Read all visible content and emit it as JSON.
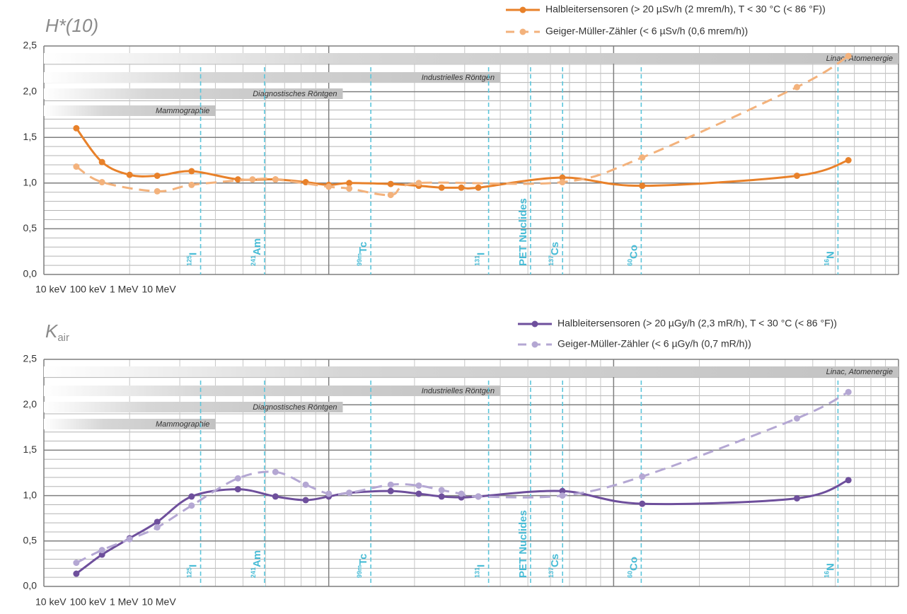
{
  "chart_data": [
    {
      "type": "line",
      "title": "H*(10)",
      "xscale": "log",
      "grid": true,
      "legend": "top-right",
      "xlim": [
        10,
        10000
      ],
      "xticks": [
        {
          "value": 10,
          "label": "10 keV"
        },
        {
          "value": 100,
          "label": "100 keV"
        },
        {
          "value": 1000,
          "label": "1 MeV"
        },
        {
          "value": 10000,
          "label": "10 MeV"
        }
      ],
      "xminorticks": [
        20,
        30,
        40,
        50,
        60,
        70,
        80,
        90,
        200,
        300,
        400,
        500,
        600,
        700,
        800,
        900,
        2000,
        3000,
        4000,
        5000,
        6000,
        7000,
        8000,
        9000
      ],
      "ylim": [
        0,
        2.5
      ],
      "yticks": [
        {
          "value": 0,
          "label": "0,0"
        },
        {
          "value": 0.5,
          "label": "0,5"
        },
        {
          "value": 1,
          "label": "1,0"
        },
        {
          "value": 1.5,
          "label": "1,5"
        },
        {
          "value": 2,
          "label": "2,0"
        },
        {
          "value": 2.5,
          "label": "2,5"
        }
      ],
      "yminorticks": [
        0.1,
        0.2,
        0.3,
        0.4,
        0.6,
        0.7,
        0.8,
        0.9,
        1.1,
        1.2,
        1.3,
        1.4,
        1.6,
        1.7,
        1.8,
        1.9,
        2.1,
        2.2,
        2.3,
        2.4
      ],
      "ranges": [
        {
          "label": "Linac, Atomenergie",
          "x_end": 10000
        },
        {
          "label": "Industrielles Röntgen",
          "x_end": 400
        },
        {
          "label": "Diagnostisches Röntgen",
          "x_end": 112
        },
        {
          "label": "Mammographie",
          "x_end": 40
        }
      ],
      "nuclides": [
        {
          "mass": "125",
          "symbol": "I",
          "x": 35.5
        },
        {
          "mass": "241",
          "symbol": "Am",
          "x": 59.5
        },
        {
          "mass": "99m",
          "symbol": "Tc",
          "x": 140.5
        },
        {
          "mass": "131",
          "symbol": "I",
          "x": 364
        },
        {
          "mass": "",
          "symbol": "PET Nuclides",
          "x": 511
        },
        {
          "mass": "137",
          "symbol": "Cs",
          "x": 662
        },
        {
          "mass": "60",
          "symbol": "Co",
          "x": 1250
        },
        {
          "mass": "16",
          "symbol": "N",
          "x": 6130
        }
      ],
      "series": [
        {
          "name": "Halbleitersensoren (> 20 µSv/h (2 mrem/h), T < 30 °C (< 86 °F))",
          "color": "#e8812a",
          "dashed": false,
          "x": [
            13,
            16,
            20,
            25,
            33,
            48,
            65,
            83,
            100,
            118,
            165,
            207,
            249,
            292,
            335,
            661,
            1260,
            4400,
            6670
          ],
          "values": [
            1.6,
            1.23,
            1.09,
            1.08,
            1.13,
            1.04,
            1.04,
            1.01,
            0.98,
            1.0,
            0.99,
            0.97,
            0.95,
            0.95,
            0.95,
            1.06,
            0.97,
            1.08,
            1.25
          ]
        },
        {
          "name": "Geiger-Müller-Zähler (< 6 µSv/h (0,6 mrem/h))",
          "color": "#f3b27c",
          "dashed": true,
          "x": [
            13,
            16,
            25,
            33,
            54,
            65,
            100,
            118,
            165,
            207,
            661,
            1260,
            4400,
            6670
          ],
          "values": [
            1.18,
            1.01,
            0.91,
            0.98,
            1.04,
            1.04,
            0.96,
            0.94,
            0.87,
            1.0,
            1.01,
            1.28,
            2.05,
            2.39
          ]
        }
      ]
    },
    {
      "type": "line",
      "title": "K",
      "title_subscript": "air",
      "xscale": "log",
      "grid": true,
      "legend": "top-right",
      "xlim": [
        10,
        10000
      ],
      "xticks": [
        {
          "value": 10,
          "label": "10 keV"
        },
        {
          "value": 100,
          "label": "100 keV"
        },
        {
          "value": 1000,
          "label": "1 MeV"
        },
        {
          "value": 10000,
          "label": "10 MeV"
        }
      ],
      "xminorticks": [
        20,
        30,
        40,
        50,
        60,
        70,
        80,
        90,
        200,
        300,
        400,
        500,
        600,
        700,
        800,
        900,
        2000,
        3000,
        4000,
        5000,
        6000,
        7000,
        8000,
        9000
      ],
      "ylim": [
        0,
        2.5
      ],
      "yticks": [
        {
          "value": 0,
          "label": "0,0"
        },
        {
          "value": 0.5,
          "label": "0,5"
        },
        {
          "value": 1,
          "label": "1,0"
        },
        {
          "value": 1.5,
          "label": "1,5"
        },
        {
          "value": 2,
          "label": "2,0"
        },
        {
          "value": 2.5,
          "label": "2,5"
        }
      ],
      "yminorticks": [
        0.1,
        0.2,
        0.3,
        0.4,
        0.6,
        0.7,
        0.8,
        0.9,
        1.1,
        1.2,
        1.3,
        1.4,
        1.6,
        1.7,
        1.8,
        1.9,
        2.1,
        2.2,
        2.3,
        2.4
      ],
      "ranges": [
        {
          "label": "Linac, Atomenergie",
          "x_end": 10000
        },
        {
          "label": "Industrielles Röntgen",
          "x_end": 400
        },
        {
          "label": "Diagnostisches Röntgen",
          "x_end": 112
        },
        {
          "label": "Mammographie",
          "x_end": 40
        }
      ],
      "nuclides": [
        {
          "mass": "125",
          "symbol": "I",
          "x": 35.5
        },
        {
          "mass": "241",
          "symbol": "Am",
          "x": 59.5
        },
        {
          "mass": "99m",
          "symbol": "Tc",
          "x": 140.5
        },
        {
          "mass": "131",
          "symbol": "I",
          "x": 364
        },
        {
          "mass": "",
          "symbol": "PET Nuclides",
          "x": 511
        },
        {
          "mass": "137",
          "symbol": "Cs",
          "x": 662
        },
        {
          "mass": "60",
          "symbol": "Co",
          "x": 1250
        },
        {
          "mass": "16",
          "symbol": "N",
          "x": 6130
        }
      ],
      "series": [
        {
          "name": "Halbleitersensoren (> 20 µGy/h (2,3 mR/h), T < 30 °C (< 86 °F))",
          "color": "#6e4f9c",
          "dashed": false,
          "x": [
            13,
            16,
            20,
            25,
            33,
            48,
            65,
            83,
            100,
            118,
            165,
            207,
            249,
            292,
            335,
            661,
            1260,
            4400,
            6670
          ],
          "values": [
            0.14,
            0.35,
            0.53,
            0.71,
            0.99,
            1.07,
            0.99,
            0.95,
            0.99,
            1.03,
            1.05,
            1.02,
            0.99,
            0.98,
            0.99,
            1.05,
            0.91,
            0.97,
            1.17
          ]
        },
        {
          "name": "Geiger-Müller-Zähler (< 6 µGy/h (0,7 mR/h))",
          "color": "#b4a7d3",
          "dashed": true,
          "x": [
            13,
            16,
            20,
            25,
            33,
            48,
            65,
            83,
            100,
            118,
            165,
            207,
            249,
            292,
            335,
            661,
            1260,
            4400,
            6670
          ],
          "values": [
            0.26,
            0.4,
            0.52,
            0.65,
            0.89,
            1.19,
            1.26,
            1.12,
            1.02,
            1.03,
            1.12,
            1.11,
            1.06,
            1.02,
            0.99,
            1.0,
            1.21,
            1.85,
            2.14
          ]
        }
      ]
    }
  ]
}
